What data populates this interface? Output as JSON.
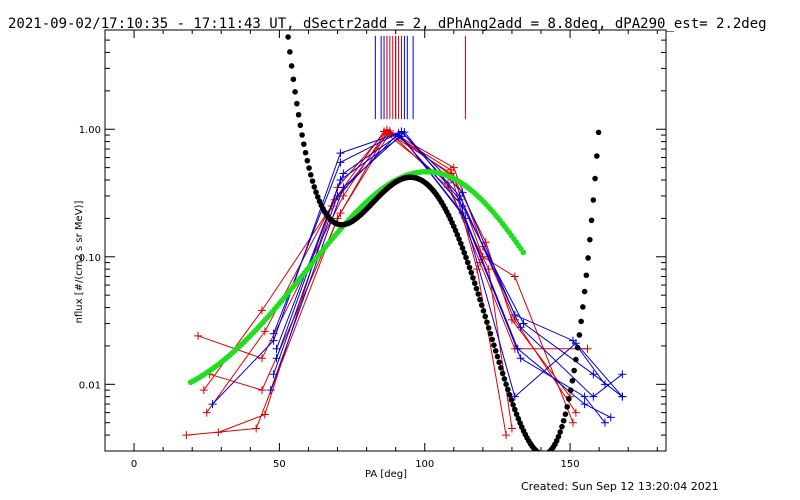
{
  "header": {
    "title": "2021-09-02/17:10:35 - 17:11:43 UT, dSectr2add = 2, dPhAng2add = 8.8deg, dPA290_est=  2.2deg"
  },
  "footer": {
    "created": "Created: Sun Sep 12 13:20:04 2021"
  },
  "chart_data": {
    "type": "line",
    "xlabel": "PA [deg]",
    "ylabel": "nflux [#/(cm2 s sr MeV)]",
    "xlim": [
      -10,
      183
    ],
    "ylim": [
      0.003,
      6.0
    ],
    "yscale": "log",
    "x_ticks": [
      0,
      50,
      100,
      150
    ],
    "x_tick_labels": [
      "0",
      "50",
      "100",
      "150"
    ],
    "y_ticks": [
      0.01,
      0.1,
      1.0
    ],
    "y_tick_labels": [
      "0.01",
      "0.10",
      "1.00"
    ],
    "grid": false,
    "colors": {
      "red": "#dd0000",
      "blue": "#0000dd",
      "green": "#22dd22",
      "black": "#000000"
    },
    "red_series": [
      [
        [
          18,
          0.004
        ],
        [
          42,
          0.0045
        ],
        [
          70,
          0.2
        ],
        [
          87,
          0.95
        ],
        [
          109,
          0.45
        ],
        [
          118,
          0.08
        ],
        [
          128,
          0.004
        ]
      ],
      [
        [
          22,
          0.024
        ],
        [
          44,
          0.016
        ],
        [
          72,
          0.3
        ],
        [
          87,
          0.98
        ],
        [
          109,
          0.48
        ],
        [
          120,
          0.1
        ],
        [
          131,
          0.07
        ],
        [
          151,
          0.005
        ]
      ],
      [
        [
          24,
          0.009
        ],
        [
          44,
          0.038
        ],
        [
          68,
          0.25
        ],
        [
          88,
          0.97
        ],
        [
          110,
          0.42
        ],
        [
          121,
          0.13
        ],
        [
          130,
          0.032
        ],
        [
          150,
          0.008
        ]
      ],
      [
        [
          25,
          0.006
        ],
        [
          45,
          0.026
        ],
        [
          69,
          0.28
        ],
        [
          86,
          0.96
        ],
        [
          108,
          0.38
        ],
        [
          119,
          0.09
        ],
        [
          131,
          0.019
        ],
        [
          156,
          0.019
        ]
      ],
      [
        [
          29,
          0.0042
        ],
        [
          45,
          0.0058
        ],
        [
          70,
          0.35
        ],
        [
          87,
          0.99
        ],
        [
          110,
          0.5
        ],
        [
          120,
          0.12
        ],
        [
          131,
          0.032
        ],
        [
          152,
          0.006
        ]
      ],
      [
        [
          26,
          0.012
        ],
        [
          44,
          0.009
        ],
        [
          71,
          0.22
        ],
        [
          88,
          0.94
        ],
        [
          108,
          0.35
        ],
        [
          122,
          0.08
        ],
        [
          130,
          0.0045
        ]
      ]
    ],
    "blue_series": [
      [
        [
          27,
          0.007
        ],
        [
          48,
          0.022
        ],
        [
          71,
          0.65
        ],
        [
          92,
          0.95
        ],
        [
          113,
          0.32
        ],
        [
          131,
          0.035
        ],
        [
          151,
          0.022
        ],
        [
          162,
          0.01
        ]
      ],
      [
        [
          48,
          0.025
        ],
        [
          71,
          0.55
        ],
        [
          92,
          0.96
        ],
        [
          112,
          0.3
        ],
        [
          133,
          0.028
        ],
        [
          158,
          0.008
        ],
        [
          168,
          0.012
        ]
      ],
      [
        [
          49,
          0.019
        ],
        [
          72,
          0.45
        ],
        [
          91,
          0.9
        ],
        [
          113,
          0.25
        ],
        [
          134,
          0.03
        ],
        [
          158,
          0.012
        ],
        [
          168,
          0.008
        ]
      ],
      [
        [
          47,
          0.009
        ],
        [
          72,
          0.35
        ],
        [
          93,
          0.95
        ],
        [
          112,
          0.28
        ],
        [
          131,
          0.008
        ],
        [
          152,
          0.021
        ],
        [
          168,
          0.008
        ]
      ],
      [
        [
          49,
          0.016
        ],
        [
          71,
          0.4
        ],
        [
          92,
          0.88
        ],
        [
          114,
          0.2
        ],
        [
          132,
          0.019
        ],
        [
          155,
          0.007
        ],
        [
          164,
          0.0055
        ]
      ],
      [
        [
          48,
          0.012
        ],
        [
          70,
          0.3
        ],
        [
          91,
          0.93
        ],
        [
          113,
          0.22
        ],
        [
          133,
          0.016
        ],
        [
          155,
          0.008
        ],
        [
          162,
          0.005
        ]
      ]
    ],
    "red_markers": [
      87,
      88,
      89,
      90,
      91,
      92,
      114
    ],
    "blue_markers": [
      83,
      85,
      86,
      87,
      90,
      93,
      94,
      96
    ],
    "green_fit": {
      "shape": "cubic polynomial in cos(PA), log10 nflux",
      "coefficients": [
        -0.4,
        -0.7,
        -1.7,
        0.7
      ],
      "pa_range": [
        19.5,
        134.5
      ]
    },
    "black_fit": {
      "shape": "quartic polynomial in PA, log10 nflux",
      "pa_range": [
        53,
        160
      ],
      "points": [
        [
          53,
          5.2
        ],
        [
          67,
          0.22
        ],
        [
          73,
          0.17
        ],
        [
          93,
          0.4
        ],
        [
          110,
          0.18
        ],
        [
          140,
          0.0028
        ],
        [
          160,
          1.1
        ]
      ]
    }
  }
}
